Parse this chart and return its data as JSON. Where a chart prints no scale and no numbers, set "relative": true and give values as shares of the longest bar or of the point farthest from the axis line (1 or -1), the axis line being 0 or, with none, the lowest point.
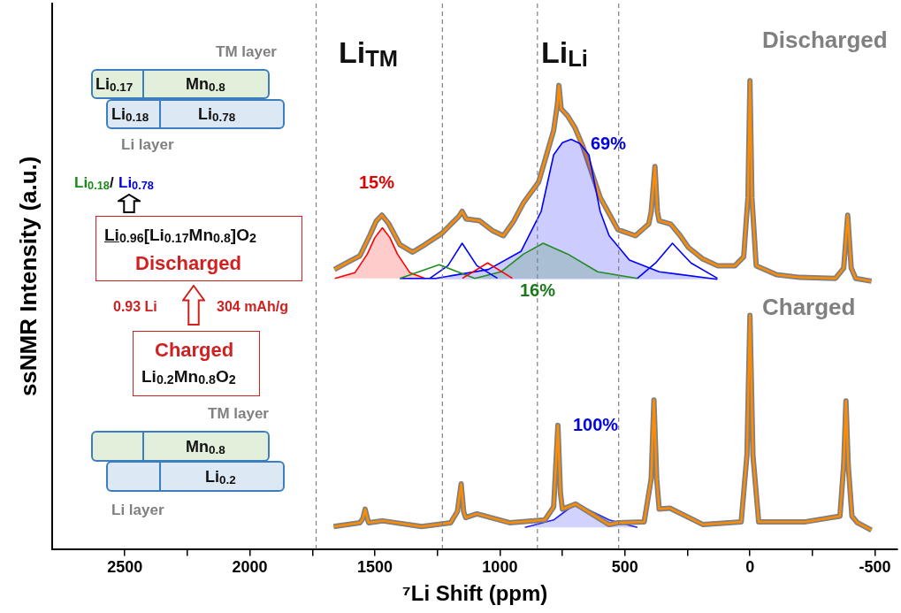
{
  "chart_data": {
    "type": "line",
    "xlabel": "⁷Li Shift (ppm)",
    "ylabel": "ssNMR Intensity (a.u.)",
    "relative": true,
    "grid": false,
    "marker": "none",
    "xlim": [
      2790,
      -590
    ],
    "xticks": [
      2500,
      {
        "value": 2250,
        "label": null
      },
      2000,
      {
        "value": 1750,
        "label": null
      },
      1500,
      {
        "value": 1250,
        "label": null
      },
      1000,
      {
        "value": 750,
        "label": null
      },
      500,
      {
        "value": 250,
        "label": null
      },
      0,
      {
        "value": -250,
        "label": null
      },
      -500
    ],
    "ref_lines": [
      {
        "axis": "x",
        "value": 1735,
        "color": "#808080",
        "line_style": "dashed"
      },
      {
        "axis": "x",
        "value": 1230,
        "color": "#808080",
        "line_style": "dashed"
      },
      {
        "axis": "x",
        "value": 850,
        "color": "#808080",
        "line_style": "dashed"
      },
      {
        "axis": "x",
        "value": 525,
        "color": "#808080",
        "line_style": "dashed"
      }
    ],
    "series": [
      {
        "color": "#808080",
        "x": [
          1662,
          1600,
          1560,
          1520,
          1495,
          1472,
          1445,
          1400,
          1349,
          1300,
          1232,
          1165,
          1151,
          1135,
          1081,
          1030,
          986,
          945,
          905,
          845,
          785,
          770,
          764,
          755,
          729,
          700,
          669,
          630,
          599,
          528,
          458,
          405,
          395,
          380,
          370,
          363,
          317,
          280,
          246,
          190,
          130,
          60,
          25,
          8,
          0,
          -8,
          -25,
          -106,
          -200,
          -342,
          -375,
          -391,
          -405,
          -423,
          -486
        ],
        "values": [
          0.597,
          0.615,
          0.626,
          0.67,
          0.7,
          0.713,
          0.695,
          0.65,
          0.634,
          0.65,
          0.674,
          0.71,
          0.721,
          0.705,
          0.701,
          0.68,
          0.669,
          0.7,
          0.74,
          0.784,
          0.894,
          0.95,
          0.99,
          0.94,
          0.925,
          0.9,
          0.861,
          0.8,
          0.751,
          0.682,
          0.669,
          0.694,
          0.72,
          0.817,
          0.72,
          0.701,
          0.694,
          0.67,
          0.644,
          0.62,
          0.605,
          0.605,
          0.624,
          0.75,
          1.0,
          0.75,
          0.605,
          0.586,
          0.58,
          0.578,
          0.6,
          0.713,
          0.6,
          0.578,
          0.572
        ]
      },
      {
        "color": "#ff8c00",
        "x": [
          1662,
          1600,
          1560,
          1520,
          1495,
          1472,
          1445,
          1400,
          1349,
          1300,
          1232,
          1165,
          1151,
          1135,
          1081,
          1030,
          986,
          945,
          905,
          845,
          785,
          770,
          764,
          755,
          729,
          700,
          669,
          630,
          599,
          528,
          458,
          405,
          395,
          380,
          370,
          363,
          317,
          280,
          246,
          190,
          130,
          60,
          25,
          8,
          0,
          -8,
          -25,
          -106,
          -200,
          -342,
          -375,
          -391,
          -405,
          -423,
          -486
        ],
        "values": [
          0.597,
          0.615,
          0.626,
          0.67,
          0.7,
          0.713,
          0.695,
          0.65,
          0.634,
          0.65,
          0.674,
          0.71,
          0.721,
          0.705,
          0.701,
          0.68,
          0.669,
          0.7,
          0.74,
          0.784,
          0.894,
          0.95,
          0.99,
          0.94,
          0.925,
          0.9,
          0.861,
          0.8,
          0.751,
          0.682,
          0.669,
          0.694,
          0.72,
          0.817,
          0.72,
          0.701,
          0.694,
          0.67,
          0.644,
          0.62,
          0.605,
          0.605,
          0.624,
          0.75,
          1.0,
          0.75,
          0.605,
          0.586,
          0.58,
          0.578,
          0.6,
          0.713,
          0.6,
          0.578,
          0.572
        ]
      },
      {
        "type": "area",
        "color": "#ff0000",
        "x": [
          1660,
          1580,
          1530,
          1500,
          1470,
          1440,
          1410,
          1360,
          1300
        ],
        "values": [
          0.578,
          0.59,
          0.63,
          0.665,
          0.686,
          0.665,
          0.63,
          0.59,
          0.578
        ]
      },
      {
        "type": "area",
        "color": "#0000ff",
        "x": [
          1400,
          1257,
          1046,
          915,
          835,
          785,
          750,
          715,
          680,
          644,
          599,
          563,
          482,
          363,
          130
        ],
        "values": [
          0.578,
          0.578,
          0.597,
          0.636,
          0.721,
          0.842,
          0.868,
          0.875,
          0.866,
          0.842,
          0.721,
          0.669,
          0.617,
          0.592,
          0.576
        ]
      },
      {
        "type": "area",
        "color": "#228b22",
        "x": [
          1100,
          996,
          905,
          827,
          729,
          609,
          450
        ],
        "values": [
          0.578,
          0.592,
          0.63,
          0.653,
          0.63,
          0.592,
          0.578
        ]
      },
      {
        "color": "#0000ff",
        "x": [
          1280,
          1208,
          1151,
          1092,
          1010
        ],
        "values": [
          0.578,
          0.605,
          0.653,
          0.605,
          0.578
        ]
      },
      {
        "color": "#228b22",
        "x": [
          1400,
          1243,
          1100
        ],
        "values": [
          0.578,
          0.607,
          0.578
        ]
      },
      {
        "color": "#ff0000",
        "x": [
          1150,
          1049,
          950
        ],
        "values": [
          0.578,
          0.611,
          0.578
        ]
      },
      {
        "color": "#0000ff",
        "x": [
          450,
          377,
          310,
          236,
          130
        ],
        "values": [
          0.578,
          0.611,
          0.653,
          0.611,
          0.578
        ]
      },
      {
        "type": "area",
        "color": "#2020ff",
        "x": [
          900,
          785,
          740,
          697,
          650,
          563,
          450
        ],
        "values": [
          0.046,
          0.062,
          0.08,
          0.096,
          0.085,
          0.062,
          0.046
        ]
      },
      {
        "color": "#808080",
        "x": [
          1665,
          1560,
          1548,
          1539,
          1530,
          1525,
          1468,
          1313,
          1197,
          1170,
          1155,
          1145,
          1137,
          1092,
          961,
          820,
          785,
          768,
          758,
          750,
          697,
          563,
          528,
          423,
          395,
          384,
          373,
          363,
          320,
          187,
          35,
          12,
          0,
          -12,
          -35,
          -222,
          -360,
          -375,
          -384,
          -393,
          -408,
          -430,
          -486
        ],
        "values": [
          0.048,
          0.056,
          0.065,
          0.085,
          0.065,
          0.056,
          0.06,
          0.048,
          0.056,
          0.08,
          0.139,
          0.08,
          0.067,
          0.075,
          0.056,
          0.062,
          0.09,
          0.264,
          0.12,
          0.085,
          0.096,
          0.052,
          0.056,
          0.058,
          0.15,
          0.318,
          0.15,
          0.085,
          0.087,
          0.052,
          0.058,
          0.2,
          0.499,
          0.2,
          0.058,
          0.058,
          0.07,
          0.18,
          0.316,
          0.18,
          0.07,
          0.056,
          0.04
        ]
      },
      {
        "color": "#ff8c00",
        "x": [
          1665,
          1560,
          1548,
          1539,
          1530,
          1525,
          1468,
          1313,
          1197,
          1170,
          1155,
          1145,
          1137,
          1092,
          961,
          820,
          785,
          768,
          758,
          750,
          697,
          563,
          528,
          423,
          395,
          384,
          373,
          363,
          320,
          187,
          35,
          12,
          0,
          -12,
          -35,
          -222,
          -360,
          -375,
          -384,
          -393,
          -408,
          -430,
          -486
        ],
        "values": [
          0.048,
          0.056,
          0.065,
          0.085,
          0.065,
          0.056,
          0.06,
          0.048,
          0.056,
          0.08,
          0.139,
          0.08,
          0.067,
          0.075,
          0.056,
          0.062,
          0.09,
          0.264,
          0.12,
          0.085,
          0.096,
          0.052,
          0.056,
          0.058,
          0.15,
          0.318,
          0.15,
          0.085,
          0.087,
          0.052,
          0.058,
          0.2,
          0.499,
          0.2,
          0.058,
          0.058,
          0.07,
          0.18,
          0.316,
          0.18,
          0.07,
          0.056,
          0.04
        ]
      }
    ],
    "annotations": [
      "Li$_{TM}$",
      "Li$_{Li}$",
      "15%",
      "69%",
      "16%",
      "100%",
      "Discharged",
      "Charged",
      "TM layer",
      "Li$_{0.17}$",
      "Mn$_{0.8}$",
      "Li$_{0.18}$",
      "Li$_{0.78}$",
      "Li layer",
      "Li$_{0.18}$",
      "/",
      "Li$_{0.78}$",
      "Li$_{0.96}$[Li$_{0.17}$Mn$_{0.8}$]O$_{2}$",
      "Discharged",
      "0.93 Li",
      "304 mAh/g",
      "Charged",
      "Li$_{0.2}$Mn$_{0.8}$O$_{2}$",
      "TM layer",
      "Mn$_{0.8}$",
      "Li$_{0.2}$",
      "Li layer"
    ]
  }
}
